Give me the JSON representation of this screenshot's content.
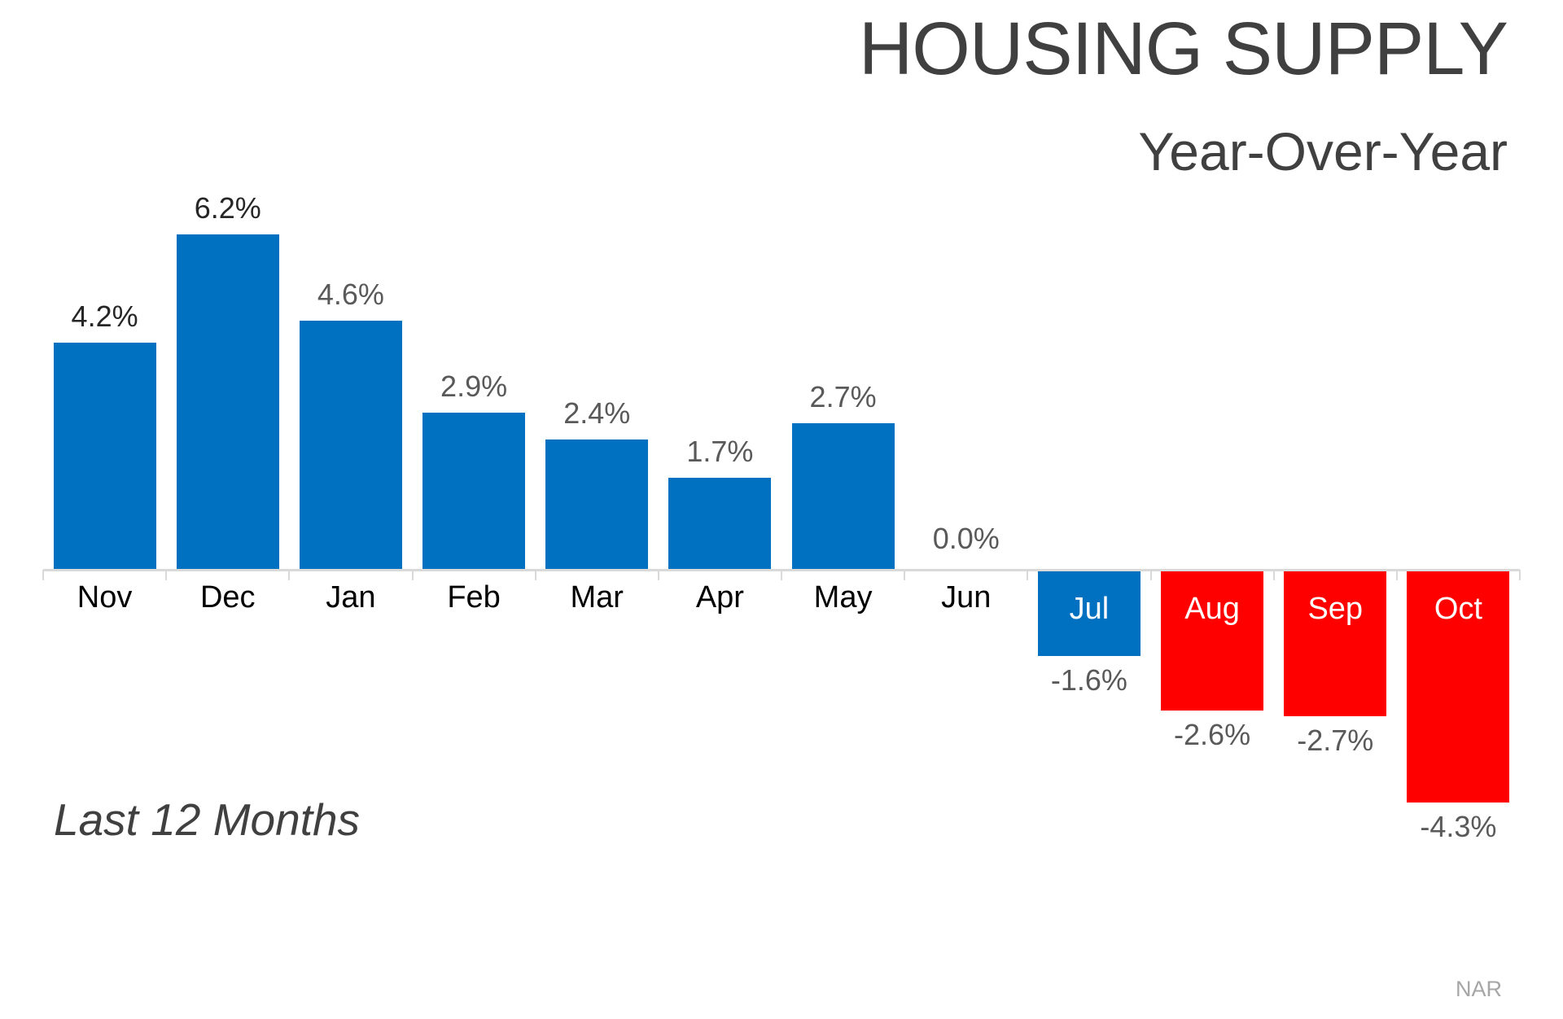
{
  "chart_data": {
    "type": "bar",
    "title": "HOUSING SUPPLY",
    "subtitle": "Year-Over-Year",
    "footnote": "Last 12 Months",
    "source": "NAR",
    "categories": [
      "Nov",
      "Dec",
      "Jan",
      "Feb",
      "Mar",
      "Apr",
      "May",
      "Jun",
      "Jul",
      "Aug",
      "Sep",
      "Oct"
    ],
    "values": [
      4.2,
      6.2,
      4.6,
      2.9,
      2.4,
      1.7,
      2.7,
      0.0,
      -1.6,
      -2.6,
      -2.7,
      -4.3
    ],
    "labels": [
      "4.2%",
      "6.2%",
      "4.6%",
      "2.9%",
      "2.4%",
      "1.7%",
      "2.7%",
      "0.0%",
      "-1.6%",
      "-2.6%",
      "-2.7%",
      "-4.3%"
    ],
    "bar_colors": [
      "blue",
      "blue",
      "blue",
      "blue",
      "blue",
      "blue",
      "blue",
      "blue",
      "blue",
      "red",
      "red",
      "red"
    ],
    "value_label_colors": [
      "dark",
      "dark",
      "gray",
      "gray",
      "gray",
      "gray",
      "gray",
      "gray",
      "gray",
      "gray",
      "gray",
      "gray"
    ],
    "colors": {
      "blue": "#0070C0",
      "red": "#FF0000",
      "dark": "#262626",
      "gray": "#595959",
      "axis": "#D9D9D9",
      "title": "#404040",
      "month": "#000000",
      "inside_label": "#FFFFFF",
      "source": "#A6A6A6"
    },
    "ylim": [
      -4.5,
      6.5
    ],
    "grid": false,
    "legend": false,
    "xlabel": "",
    "ylabel": ""
  }
}
